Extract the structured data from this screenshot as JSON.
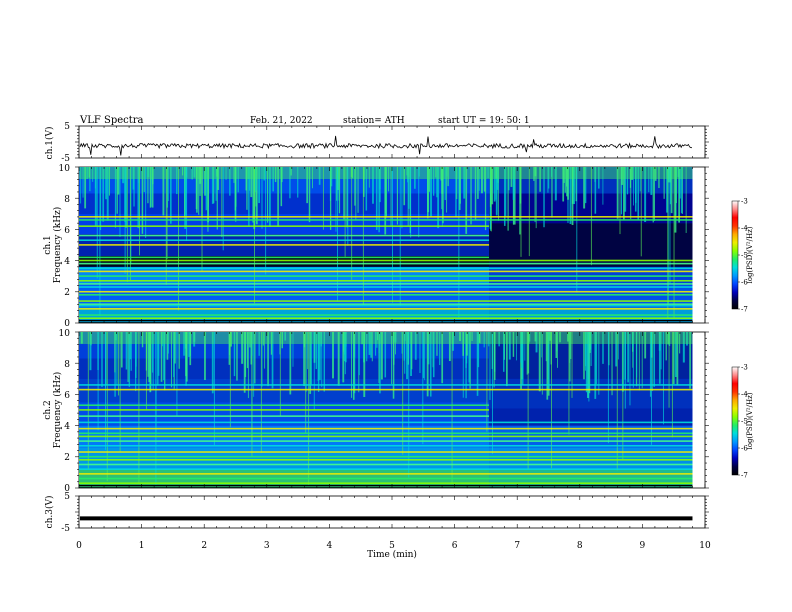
{
  "header": {
    "title": "VLF  Spectra",
    "date": "Feb. 21, 2022",
    "station": "station= ATH",
    "start": "start  UT  =    19: 50: 1"
  },
  "colors": {
    "spec_scale": [
      "#000000",
      "#000044",
      "#0000bb",
      "#0044ff",
      "#0099ff",
      "#00dddd",
      "#22ee66",
      "#88ff00",
      "#eeee00",
      "#ffaa00",
      "#ff3300",
      "#ff0000",
      "#ff8888",
      "#ffffff"
    ]
  },
  "chart_data": [
    {
      "type": "line",
      "ylabel": "ch.1(V)",
      "ylim": [
        -5,
        5
      ],
      "yticks": [
        "5",
        "-5"
      ],
      "baseline": -1.2,
      "xlim": [
        0,
        10
      ]
    },
    {
      "type": "heatmap",
      "ylabel": "ch.1\nFrequency  (kHz)",
      "ylim": [
        0,
        10
      ],
      "yticks": [
        "0",
        "2",
        "4",
        "6",
        "8",
        "10"
      ],
      "xlim": [
        0,
        10
      ],
      "data_end_min": 9.8,
      "transition_min": 6.55,
      "colorbar": {
        "label": "log(PSD)(V²/Hz)",
        "range": [
          -7,
          -3
        ],
        "ticks": [
          "-3",
          "-4",
          "-5",
          "-6",
          "-7"
        ]
      },
      "lines_khz": [
        0.3,
        0.5,
        0.9,
        1.1,
        1.2,
        1.4,
        1.8,
        2.0,
        2.3,
        2.5,
        2.7,
        3.0,
        3.3,
        3.5,
        3.8,
        4.0,
        4.2,
        5.0,
        5.3,
        5.6,
        6.2,
        6.6,
        6.8
      ]
    },
    {
      "type": "heatmap",
      "ylabel": "ch.2\nFrequency  (kHz)",
      "ylim": [
        0,
        10
      ],
      "yticks": [
        "0",
        "2",
        "4",
        "6",
        "8",
        "10"
      ],
      "xlim": [
        0,
        10
      ],
      "data_end_min": 9.8,
      "transition_min": 6.55,
      "colorbar": {
        "label": "log(PSD)(V²/Hz)",
        "range": [
          -7,
          -3
        ],
        "ticks": [
          "-3",
          "-4",
          "-5",
          "-6",
          "-7"
        ]
      },
      "lines_khz": [
        0.3,
        0.6,
        0.9,
        1.2,
        1.5,
        1.8,
        2.0,
        2.3,
        2.7,
        3.0,
        3.3,
        3.5,
        3.8,
        4.2,
        4.6,
        5.0,
        5.3,
        6.3,
        6.6
      ]
    },
    {
      "type": "line",
      "ylabel": "ch.3(V)",
      "ylim": [
        -5,
        5
      ],
      "yticks": [
        "5",
        "-5"
      ],
      "baseline": -2.0,
      "xlim": [
        0,
        10
      ],
      "xlabel": "Time  (min)",
      "xticks": [
        "0",
        "1",
        "2",
        "3",
        "4",
        "5",
        "6",
        "7",
        "8",
        "9",
        "10"
      ]
    }
  ]
}
